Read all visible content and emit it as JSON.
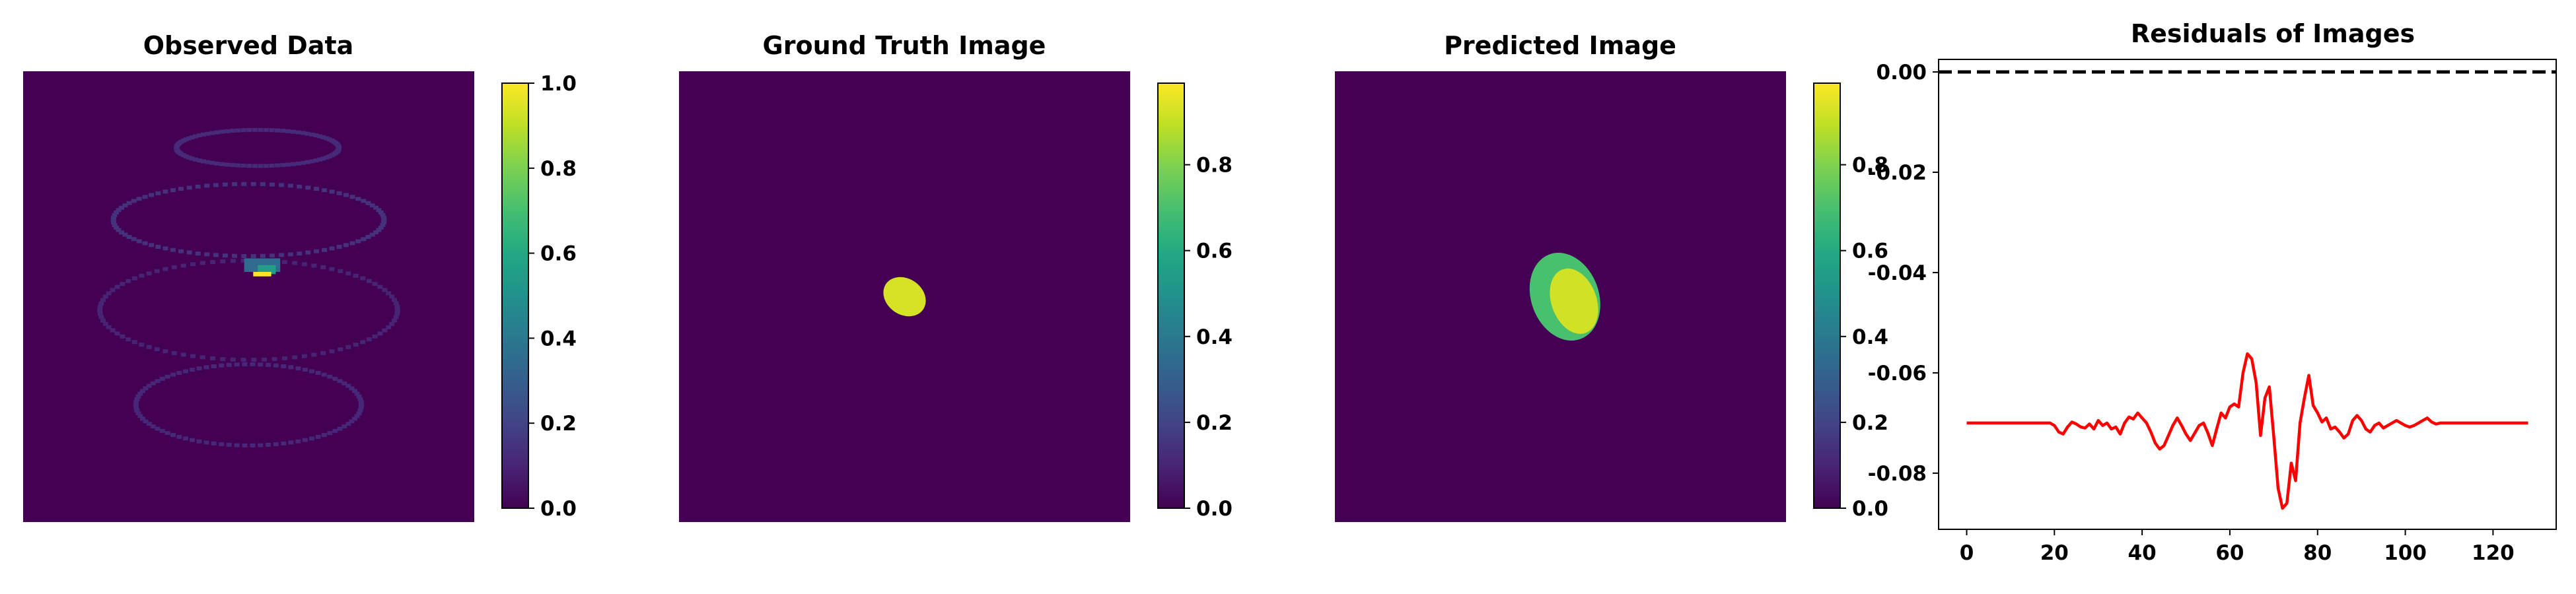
{
  "chart_data": [
    {
      "type": "heatmap",
      "title": "Observed Data",
      "colormap": "viridis",
      "background_value": 0.0,
      "colorbar": {
        "range": [
          0.0,
          1.0
        ],
        "ticks": [
          "0.0",
          "0.2",
          "0.4",
          "0.6",
          "0.8",
          "1.0"
        ]
      },
      "features": [
        {
          "kind": "spiral-ring",
          "value": 0.12,
          "cx": 0.52,
          "cy": 0.17,
          "rx": 0.18,
          "ry": 0.04,
          "from": 0,
          "to": 360
        },
        {
          "kind": "spiral-ring",
          "value": 0.14,
          "cx": 0.5,
          "cy": 0.33,
          "rx": 0.3,
          "ry": 0.08,
          "from": 0,
          "to": 360
        },
        {
          "kind": "spiral-ring",
          "value": 0.1,
          "cx": 0.5,
          "cy": 0.53,
          "rx": 0.33,
          "ry": 0.11,
          "from": 0,
          "to": 360
        },
        {
          "kind": "spiral-ring",
          "value": 0.11,
          "cx": 0.5,
          "cy": 0.74,
          "rx": 0.25,
          "ry": 0.09,
          "from": 0,
          "to": 360
        },
        {
          "kind": "block",
          "value": 0.35,
          "cx": 0.53,
          "cy": 0.43,
          "w": 0.08,
          "h": 0.03
        },
        {
          "kind": "block",
          "value": 0.55,
          "cx": 0.54,
          "cy": 0.44,
          "w": 0.04,
          "h": 0.02
        },
        {
          "kind": "block",
          "value": 1.0,
          "cx": 0.53,
          "cy": 0.45,
          "w": 0.04,
          "h": 0.01
        }
      ]
    },
    {
      "type": "heatmap",
      "title": "Ground Truth Image",
      "colormap": "viridis",
      "background_value": 0.0,
      "colorbar": {
        "range": [
          0.0,
          0.99
        ],
        "ticks": [
          "0.0",
          "0.2",
          "0.4",
          "0.6",
          "0.8"
        ]
      },
      "features": [
        {
          "kind": "ellipse",
          "value": 0.93,
          "cx": 0.5,
          "cy": 0.5,
          "rx": 0.05,
          "ry": 0.04,
          "rotate": 35
        }
      ]
    },
    {
      "type": "heatmap",
      "title": "Predicted Image",
      "colormap": "viridis",
      "background_value": 0.0,
      "colorbar": {
        "range": [
          0.0,
          0.99
        ],
        "ticks": [
          "0.0",
          "0.2",
          "0.4",
          "0.6",
          "0.8"
        ]
      },
      "features": [
        {
          "kind": "ellipse",
          "value": 0.7,
          "cx": 0.51,
          "cy": 0.5,
          "rx": 0.075,
          "ry": 0.1,
          "rotate": -20
        },
        {
          "kind": "ellipse",
          "value": 0.92,
          "cx": 0.53,
          "cy": 0.51,
          "rx": 0.05,
          "ry": 0.075,
          "rotate": -20
        }
      ]
    },
    {
      "type": "line",
      "title": "Residuals of Images",
      "xlim": [
        -6.4,
        134.4
      ],
      "ylim": [
        -0.0912,
        0.0025
      ],
      "xticks": [
        0,
        20,
        40,
        60,
        80,
        100,
        120
      ],
      "yticks": [
        0.0,
        -0.02,
        -0.04,
        -0.06,
        -0.08
      ],
      "ytick_labels": [
        "0.00",
        "-0.02",
        "-0.04",
        "-0.06",
        "-0.08"
      ],
      "reference_line": {
        "y": 0.0,
        "color": "#000000",
        "style": "dashed"
      },
      "series": [
        {
          "color": "#ff0000",
          "x": [
            0,
            19,
            20,
            21,
            22,
            23,
            24,
            25,
            26,
            27,
            28,
            29,
            30,
            31,
            32,
            33,
            34,
            35,
            36,
            37,
            38,
            39,
            40,
            41,
            42,
            43,
            44,
            45,
            46,
            47,
            48,
            49,
            50,
            51,
            52,
            53,
            54,
            55,
            56,
            57,
            58,
            59,
            60,
            61,
            62,
            63,
            64,
            65,
            66,
            67,
            68,
            69,
            70,
            71,
            72,
            73,
            74,
            75,
            76,
            77,
            78,
            79,
            80,
            81,
            82,
            83,
            84,
            85,
            86,
            87,
            88,
            89,
            90,
            91,
            92,
            93,
            94,
            95,
            96,
            97,
            98,
            99,
            100,
            101,
            102,
            103,
            104,
            105,
            106,
            107,
            108,
            109,
            110,
            111,
            112,
            128
          ],
          "y": [
            -0.07,
            -0.07,
            -0.0705,
            -0.0718,
            -0.0722,
            -0.0708,
            -0.0698,
            -0.0702,
            -0.0708,
            -0.071,
            -0.0702,
            -0.0712,
            -0.0695,
            -0.0705,
            -0.07,
            -0.0712,
            -0.0708,
            -0.0722,
            -0.07,
            -0.0688,
            -0.0692,
            -0.068,
            -0.069,
            -0.07,
            -0.0718,
            -0.074,
            -0.0752,
            -0.0745,
            -0.0725,
            -0.0705,
            -0.069,
            -0.0705,
            -0.0722,
            -0.0735,
            -0.072,
            -0.0705,
            -0.07,
            -0.072,
            -0.0745,
            -0.0712,
            -0.068,
            -0.069,
            -0.0668,
            -0.0662,
            -0.0668,
            -0.06,
            -0.0562,
            -0.0572,
            -0.062,
            -0.0725,
            -0.065,
            -0.0628,
            -0.0725,
            -0.083,
            -0.087,
            -0.086,
            -0.078,
            -0.0815,
            -0.07,
            -0.065,
            -0.0605,
            -0.0665,
            -0.068,
            -0.0698,
            -0.069,
            -0.0712,
            -0.0708,
            -0.0718,
            -0.073,
            -0.0722,
            -0.0695,
            -0.0685,
            -0.0695,
            -0.0712,
            -0.0718,
            -0.0705,
            -0.07,
            -0.071,
            -0.0705,
            -0.07,
            -0.0695,
            -0.07,
            -0.0705,
            -0.0708,
            -0.0705,
            -0.07,
            -0.0695,
            -0.069,
            -0.0698,
            -0.0702,
            -0.07,
            -0.07,
            -0.07,
            -0.07,
            -0.07,
            -0.07
          ]
        }
      ]
    }
  ]
}
